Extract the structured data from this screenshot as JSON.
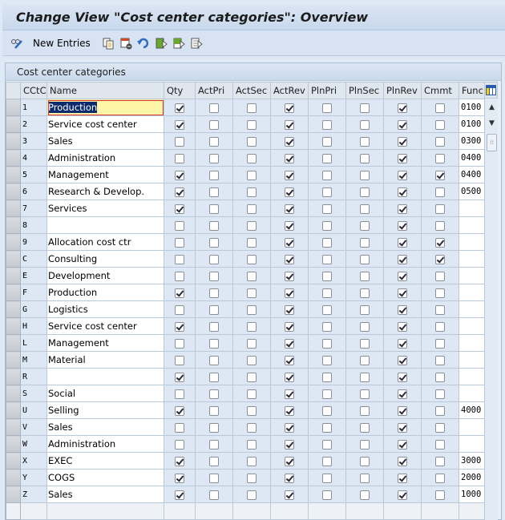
{
  "title": "Change View \"Cost center categories\": Overview",
  "toolbar": {
    "new_entries_label": "New Entries",
    "icons": [
      "display-change-icon",
      "copy-icon",
      "delete-icon",
      "undo-icon",
      "select-all-icon",
      "select-block-icon",
      "deselect-all-icon"
    ]
  },
  "group_title": "Cost center categories",
  "columns": [
    "CCtC",
    "Name",
    "Qty",
    "ActPri",
    "ActSec",
    "ActRev",
    "PlnPri",
    "PlnSec",
    "PlnRev",
    "Cmmt",
    "Func"
  ],
  "rows": [
    {
      "key": "1",
      "name": "Production",
      "flags": [
        1,
        0,
        0,
        1,
        0,
        0,
        1,
        0
      ],
      "func": "0100"
    },
    {
      "key": "2",
      "name": "Service cost center",
      "flags": [
        1,
        0,
        0,
        1,
        0,
        0,
        1,
        0
      ],
      "func": "0100"
    },
    {
      "key": "3",
      "name": "Sales",
      "flags": [
        0,
        0,
        0,
        1,
        0,
        0,
        1,
        0
      ],
      "func": "0300"
    },
    {
      "key": "4",
      "name": "Administration",
      "flags": [
        0,
        0,
        0,
        1,
        0,
        0,
        1,
        0
      ],
      "func": "0400"
    },
    {
      "key": "5",
      "name": "Management",
      "flags": [
        1,
        0,
        0,
        1,
        0,
        0,
        1,
        1
      ],
      "func": "0400"
    },
    {
      "key": "6",
      "name": "Research & Develop.",
      "flags": [
        1,
        0,
        0,
        1,
        0,
        0,
        1,
        0
      ],
      "func": "0500"
    },
    {
      "key": "7",
      "name": "Services",
      "flags": [
        1,
        0,
        0,
        1,
        0,
        0,
        1,
        0
      ],
      "func": ""
    },
    {
      "key": "8",
      "name": "",
      "flags": [
        0,
        0,
        0,
        1,
        0,
        0,
        1,
        0
      ],
      "func": ""
    },
    {
      "key": "9",
      "name": "Allocation cost ctr",
      "flags": [
        0,
        0,
        0,
        1,
        0,
        0,
        1,
        1
      ],
      "func": ""
    },
    {
      "key": "C",
      "name": "Consulting",
      "flags": [
        0,
        0,
        0,
        1,
        0,
        0,
        1,
        1
      ],
      "func": ""
    },
    {
      "key": "E",
      "name": "Development",
      "flags": [
        0,
        0,
        0,
        1,
        0,
        0,
        1,
        0
      ],
      "func": ""
    },
    {
      "key": "F",
      "name": "Production",
      "flags": [
        1,
        0,
        0,
        1,
        0,
        0,
        1,
        0
      ],
      "func": ""
    },
    {
      "key": "G",
      "name": "Logistics",
      "flags": [
        0,
        0,
        0,
        1,
        0,
        0,
        1,
        0
      ],
      "func": ""
    },
    {
      "key": "H",
      "name": "Service cost center",
      "flags": [
        1,
        0,
        0,
        1,
        0,
        0,
        1,
        0
      ],
      "func": ""
    },
    {
      "key": "L",
      "name": "Management",
      "flags": [
        0,
        0,
        0,
        1,
        0,
        0,
        1,
        0
      ],
      "func": ""
    },
    {
      "key": "M",
      "name": "Material",
      "flags": [
        0,
        0,
        0,
        1,
        0,
        0,
        1,
        0
      ],
      "func": ""
    },
    {
      "key": "R",
      "name": "",
      "flags": [
        1,
        0,
        0,
        1,
        0,
        0,
        1,
        0
      ],
      "func": ""
    },
    {
      "key": "S",
      "name": "Social",
      "flags": [
        0,
        0,
        0,
        1,
        0,
        0,
        1,
        0
      ],
      "func": ""
    },
    {
      "key": "U",
      "name": "Selling",
      "flags": [
        1,
        0,
        0,
        1,
        0,
        0,
        1,
        0
      ],
      "func": "4000"
    },
    {
      "key": "V",
      "name": "Sales",
      "flags": [
        0,
        0,
        0,
        1,
        0,
        0,
        1,
        0
      ],
      "func": ""
    },
    {
      "key": "W",
      "name": "Administration",
      "flags": [
        0,
        0,
        0,
        1,
        0,
        0,
        1,
        0
      ],
      "func": ""
    },
    {
      "key": "X",
      "name": "EXEC",
      "flags": [
        1,
        0,
        0,
        1,
        0,
        0,
        1,
        0
      ],
      "func": "3000"
    },
    {
      "key": "Y",
      "name": "COGS",
      "flags": [
        1,
        0,
        0,
        1,
        0,
        0,
        1,
        0
      ],
      "func": "2000"
    },
    {
      "key": "Z",
      "name": "Sales",
      "flags": [
        1,
        0,
        0,
        1,
        0,
        0,
        1,
        0
      ],
      "func": "1000"
    }
  ]
}
